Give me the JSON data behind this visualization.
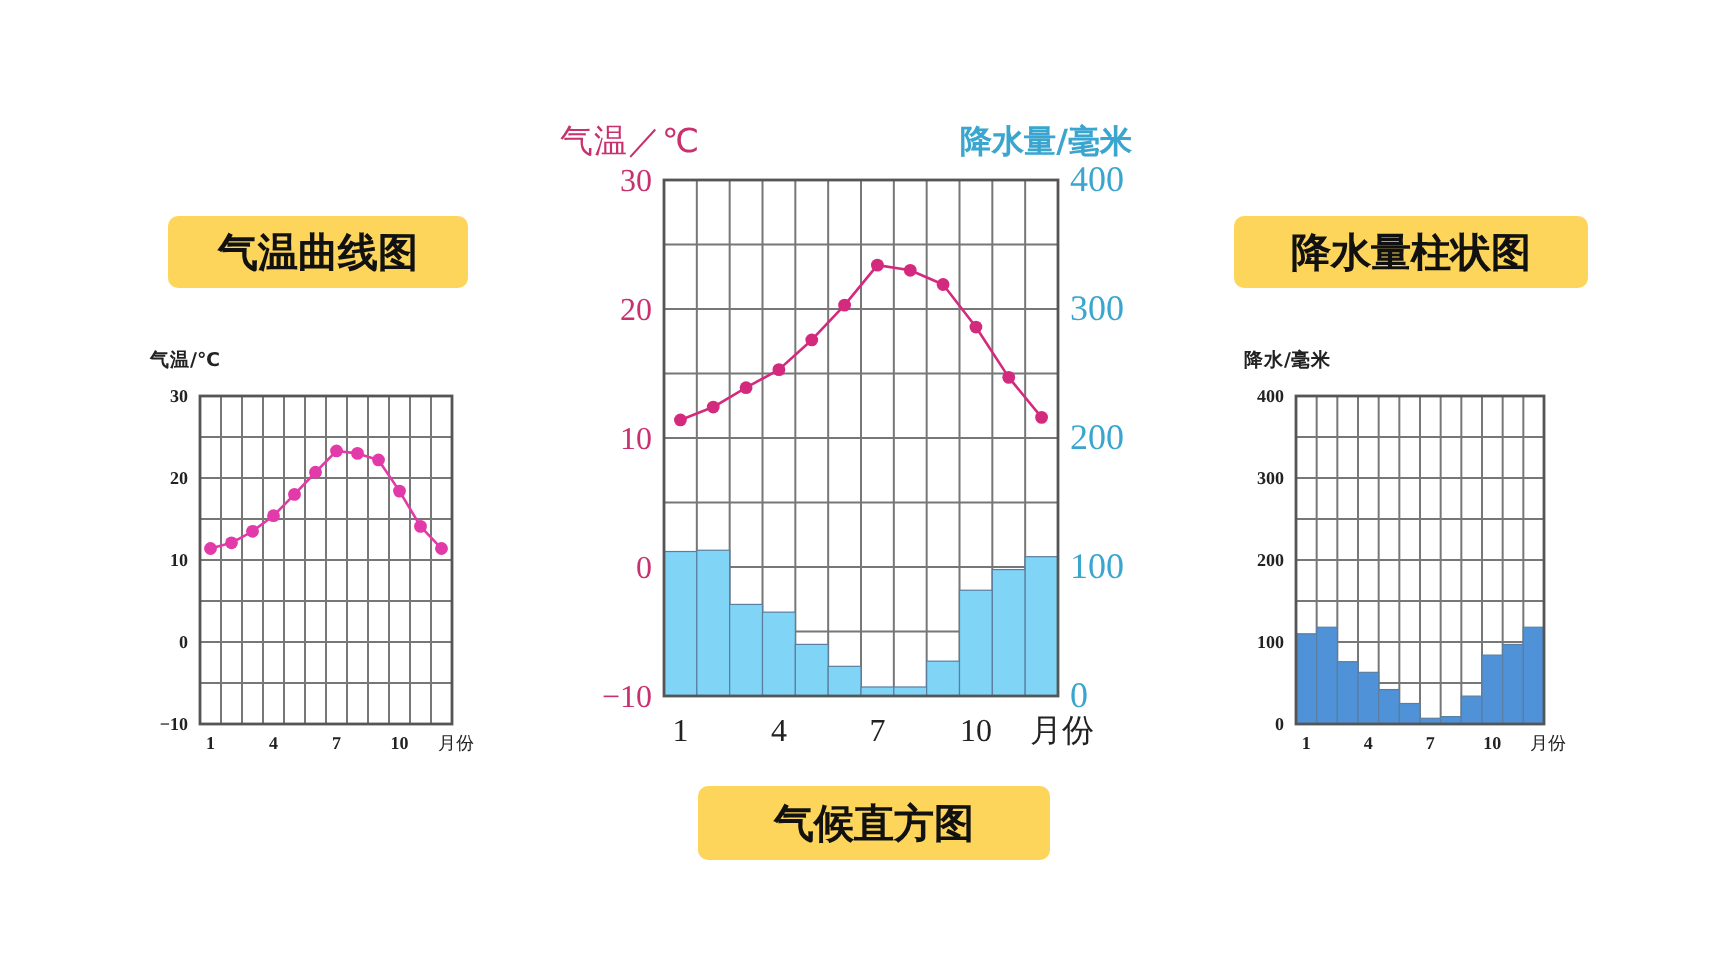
{
  "chart_data": [
    {
      "type": "line",
      "title": "气温曲线图",
      "ylabel": "气温/℃",
      "xlabel": "月份",
      "categories": [
        "1",
        null,
        null,
        "4",
        null,
        null,
        "7",
        null,
        null,
        "10",
        null,
        null
      ],
      "ylim": [
        -10,
        30
      ],
      "yticks": [
        -10,
        {
          "value": -5,
          "label": null
        },
        0,
        {
          "value": 5,
          "label": null
        },
        10,
        {
          "value": 15,
          "label": null
        },
        20,
        {
          "value": 25,
          "label": null
        },
        30
      ],
      "grid": true,
      "marker": "circle",
      "series": [
        {
          "color": "#e23aa8",
          "values": [
            11.4,
            12.1,
            13.5,
            15.4,
            18,
            20.7,
            23.3,
            23,
            22.2,
            18.4,
            14.1,
            11.4
          ]
        }
      ]
    },
    {
      "type": "bar",
      "title": "气候直方图",
      "ylabel": "气温／℃",
      "y2label": "降水量/毫米",
      "xlabel": "月份",
      "categories": [
        "1",
        null,
        null,
        "4",
        null,
        null,
        "7",
        null,
        null,
        "10",
        null,
        null
      ],
      "ylim": [
        -10,
        30
      ],
      "yticks": [
        -10,
        {
          "value": -5,
          "label": null
        },
        0,
        {
          "value": 5,
          "label": null
        },
        10,
        {
          "value": 15,
          "label": null
        },
        20,
        {
          "value": 25,
          "label": null
        },
        30
      ],
      "y2lim": [
        0,
        400
      ],
      "y2ticks": [
        0,
        100,
        200,
        300,
        400
      ],
      "grid": true,
      "marker": "circle",
      "series": [
        {
          "axis": "y2",
          "color": "#80d4f6",
          "values": [
            112,
            113,
            71,
            65,
            40,
            23,
            7,
            7,
            27,
            82,
            98,
            108
          ]
        },
        {
          "type": "line",
          "color": "#d42a7e",
          "values": [
            11.4,
            12.4,
            13.9,
            15.3,
            17.6,
            20.3,
            23.4,
            23,
            21.9,
            18.6,
            14.7,
            11.6
          ]
        }
      ]
    },
    {
      "type": "bar",
      "title": "降水量柱状图",
      "ylabel": "降水/毫米",
      "xlabel": "月份",
      "categories": [
        "1",
        null,
        null,
        "4",
        null,
        null,
        "7",
        null,
        null,
        "10",
        null,
        null
      ],
      "ylim": [
        0,
        400
      ],
      "yticks": [
        0,
        {
          "value": 50,
          "label": null
        },
        100,
        {
          "value": 150,
          "label": null
        },
        200,
        {
          "value": 250,
          "label": null
        },
        300,
        {
          "value": 350,
          "label": null
        },
        400
      ],
      "grid": true,
      "series": [
        {
          "color": "#4f92d8",
          "values": [
            110,
            118,
            76,
            63,
            42,
            25,
            7,
            9,
            34,
            84,
            97,
            118
          ]
        }
      ]
    }
  ]
}
